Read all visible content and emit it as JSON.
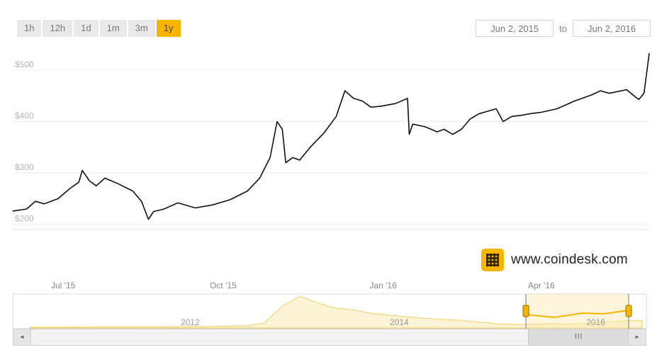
{
  "range_buttons": [
    {
      "label": "1h",
      "active": false
    },
    {
      "label": "12h",
      "active": false
    },
    {
      "label": "1d",
      "active": false
    },
    {
      "label": "1m",
      "active": false
    },
    {
      "label": "3m",
      "active": false
    },
    {
      "label": "1y",
      "active": true
    }
  ],
  "date_range": {
    "from": "Jun 2, 2015",
    "to_label": "to",
    "to": "Jun 2, 2016"
  },
  "brand": {
    "text": "www.coindesk.com",
    "icon": "coindesk-logo-icon"
  },
  "colors": {
    "accent": "#f7b500",
    "line": "#111111",
    "navigator_line": "#f0c23a",
    "navigator_fill": "#fdf0c8"
  },
  "chart_data": {
    "type": "line",
    "title": "",
    "xlabel": "",
    "ylabel": "",
    "x_start": "2015-06-02",
    "x_end": "2016-06-02",
    "ylim": [
      190,
      540
    ],
    "yticks": [
      {
        "value": 200,
        "label": "$200"
      },
      {
        "value": 300,
        "label": "$300"
      },
      {
        "value": 400,
        "label": "$400"
      },
      {
        "value": 500,
        "label": "$500"
      }
    ],
    "xticks": [
      {
        "date": "2015-07-01",
        "label": "Jul '15"
      },
      {
        "date": "2015-10-01",
        "label": "Oct '15"
      },
      {
        "date": "2016-01-01",
        "label": "Jan '16"
      },
      {
        "date": "2016-04-01",
        "label": "Apr '16"
      }
    ],
    "grid": true,
    "series": [
      {
        "x": [
          "2015-06-02",
          "2015-06-10",
          "2015-06-15",
          "2015-06-20",
          "2015-06-28",
          "2015-07-05",
          "2015-07-10",
          "2015-07-12",
          "2015-07-16",
          "2015-07-20",
          "2015-07-25",
          "2015-08-01",
          "2015-08-10",
          "2015-08-15",
          "2015-08-19",
          "2015-08-22",
          "2015-08-28",
          "2015-09-05",
          "2015-09-15",
          "2015-09-25",
          "2015-10-05",
          "2015-10-15",
          "2015-10-22",
          "2015-10-28",
          "2015-11-01",
          "2015-11-04",
          "2015-11-06",
          "2015-11-10",
          "2015-11-14",
          "2015-11-20",
          "2015-11-28",
          "2015-12-05",
          "2015-12-10",
          "2015-12-15",
          "2015-12-20",
          "2015-12-25",
          "2015-12-31",
          "2016-01-08",
          "2016-01-15",
          "2016-01-16",
          "2016-01-18",
          "2016-01-25",
          "2016-02-01",
          "2016-02-05",
          "2016-02-10",
          "2016-02-15",
          "2016-02-20",
          "2016-02-25",
          "2016-03-01",
          "2016-03-06",
          "2016-03-10",
          "2016-03-15",
          "2016-03-20",
          "2016-03-25",
          "2016-04-01",
          "2016-04-10",
          "2016-04-20",
          "2016-04-30",
          "2016-05-05",
          "2016-05-10",
          "2016-05-20",
          "2016-05-25",
          "2016-05-27",
          "2016-05-30",
          "2016-06-02"
        ],
        "y": [
          226,
          230,
          245,
          240,
          250,
          270,
          282,
          305,
          285,
          275,
          290,
          280,
          265,
          245,
          210,
          225,
          230,
          242,
          232,
          238,
          248,
          265,
          290,
          330,
          400,
          385,
          320,
          330,
          325,
          350,
          378,
          410,
          460,
          445,
          440,
          428,
          430,
          435,
          445,
          375,
          395,
          390,
          380,
          385,
          375,
          385,
          405,
          415,
          420,
          425,
          400,
          410,
          412,
          415,
          418,
          425,
          440,
          452,
          460,
          455,
          462,
          448,
          443,
          455,
          533
        ]
      }
    ]
  },
  "navigator": {
    "labels": [
      {
        "text": "2012",
        "pos": 0.28
      },
      {
        "text": "2014",
        "pos": 0.61
      },
      {
        "text": "2016",
        "pos": 0.92
      }
    ],
    "series": [
      0.5,
      0.5,
      0.5,
      0.6,
      0.8,
      0.8,
      0.8,
      1,
      1.5,
      2,
      2.5,
      3,
      4,
      12,
      60,
      90,
      70,
      55,
      50,
      40,
      35,
      30,
      26,
      22,
      20,
      15,
      10,
      8,
      9,
      10,
      9,
      12,
      15,
      18,
      20
    ]
  },
  "scrollbar": {
    "thumb_grip": "III",
    "left_arrow": "◄",
    "right_arrow": "►"
  }
}
